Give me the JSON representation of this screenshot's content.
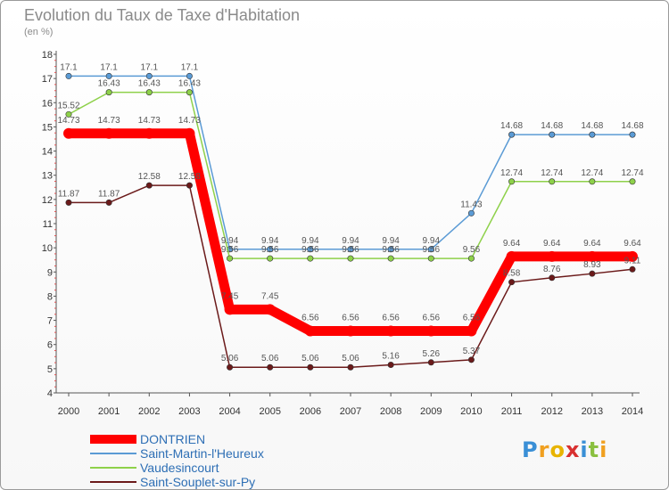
{
  "header": {
    "title": "Evolution du Taux de Taxe d'Habitation",
    "subtitle": "(en %)"
  },
  "logo": {
    "text": "Proxiti"
  },
  "chart_data": {
    "type": "line",
    "x": [
      "2000",
      "2001",
      "2002",
      "2003",
      "2004",
      "2005",
      "2006",
      "2007",
      "2008",
      "2009",
      "2010",
      "2011",
      "2012",
      "2013",
      "2014"
    ],
    "ylim": [
      4,
      18
    ],
    "yticks": [
      4,
      5,
      6,
      7,
      8,
      9,
      10,
      11,
      12,
      13,
      14,
      15,
      16,
      17,
      18
    ],
    "grid": false,
    "legend_position": "bottom-left",
    "series": [
      {
        "name": "DONTRIEN",
        "color": "#ff0000",
        "values": [
          14.73,
          14.73,
          14.73,
          14.73,
          7.45,
          7.45,
          6.56,
          6.56,
          6.56,
          6.56,
          6.56,
          9.64,
          9.64,
          9.64,
          9.64
        ],
        "labels": [
          "14.73",
          "14.73",
          "14.73",
          "14.73",
          "7.45",
          "7.45",
          "6.56",
          "6.56",
          "6.56",
          "6.56",
          "6.56",
          "9.64",
          "9.64",
          "9.64",
          "9.64"
        ]
      },
      {
        "name": "Saint-Martin-l'Heureux",
        "color": "#5b9bd5",
        "values": [
          17.1,
          17.1,
          17.1,
          17.1,
          9.94,
          9.94,
          9.94,
          9.94,
          9.94,
          9.94,
          11.43,
          14.68,
          14.68,
          14.68,
          14.68
        ],
        "labels": [
          "17.1",
          "17.1",
          "17.1",
          "17.1",
          "9.94",
          "9.94",
          "9.94",
          "9.94",
          "9.94",
          "9.94",
          "11.43",
          "14.68",
          "14.68",
          "14.68",
          "14.68"
        ]
      },
      {
        "name": "Vaudesincourt",
        "color": "#8ed14a",
        "values": [
          15.52,
          16.43,
          16.43,
          16.43,
          9.56,
          9.56,
          9.56,
          9.56,
          9.56,
          9.56,
          9.56,
          12.74,
          12.74,
          12.74,
          12.74
        ],
        "labels": [
          "15.52",
          "16.43",
          "16.43",
          "16.43",
          "9.56",
          "9.56",
          "9.56",
          "9.56",
          "9.56",
          "9.56",
          "9.56",
          "12.74",
          "12.74",
          "12.74",
          "12.74"
        ]
      },
      {
        "name": "Saint-Souplet-sur-Py",
        "color": "#6b1a1a",
        "values": [
          11.87,
          11.87,
          12.58,
          12.58,
          5.06,
          5.06,
          5.06,
          5.06,
          5.16,
          5.26,
          5.37,
          8.58,
          8.76,
          8.93,
          9.11
        ],
        "labels": [
          "11.87",
          "11.87",
          "12.58",
          "12.58",
          "5.06",
          "5.06",
          "5.06",
          "5.06",
          "5.16",
          "5.26",
          "5.37",
          "8.58",
          "8.76",
          "8.93",
          "9.11"
        ]
      }
    ]
  }
}
